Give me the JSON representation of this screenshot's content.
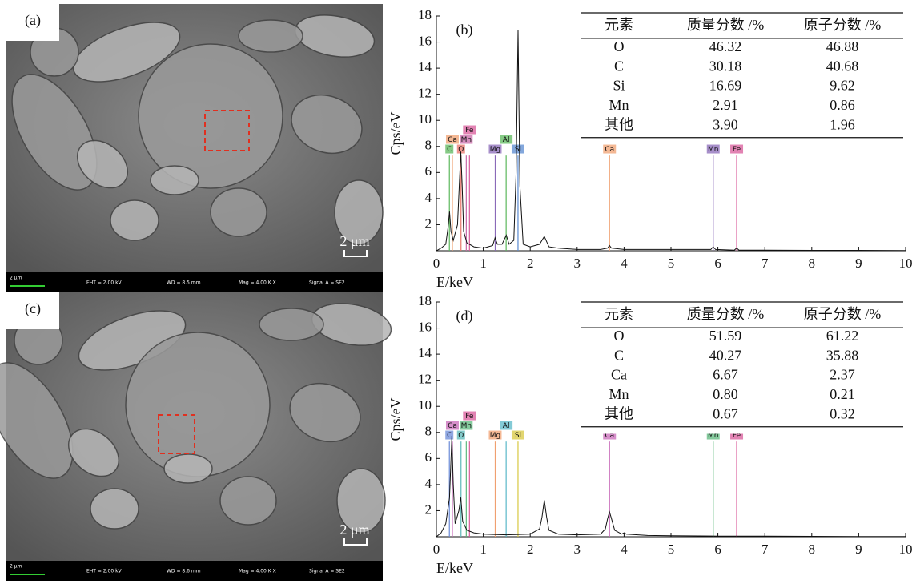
{
  "images": [
    {
      "label": "(a)",
      "scale_bar": "2 μm",
      "info": [
        "2 μm",
        "EHT = 2.00 kV",
        "WD = 8.5 mm",
        "Mag = 4.00 K X",
        "Signal A = SE2"
      ]
    },
    {
      "label": "(c)",
      "scale_bar": "2 μm",
      "info": [
        "2 μm",
        "EHT = 2.00 kV",
        "WD = 8.6 mm",
        "Mag = 4.00 K X",
        "Signal A = SE2"
      ]
    }
  ],
  "chart_data": [
    {
      "type": "line",
      "label": "(b)",
      "x_label": "E/keV",
      "y_label": "Cps/eV",
      "color": "#111111",
      "x": [
        0,
        0.1,
        0.2,
        0.25,
        0.28,
        0.31,
        0.36,
        0.45,
        0.52,
        0.55,
        0.58,
        0.65,
        0.8,
        1.0,
        1.2,
        1.25,
        1.3,
        1.4,
        1.49,
        1.55,
        1.65,
        1.7,
        1.74,
        1.78,
        1.85,
        2.0,
        2.2,
        2.3,
        2.4,
        2.6,
        3.0,
        3.5,
        3.65,
        3.69,
        3.73,
        4.0,
        5.0,
        5.85,
        5.9,
        5.95,
        6.35,
        6.4,
        6.45,
        7,
        8,
        9,
        10
      ],
      "values": [
        0,
        0.2,
        0.5,
        1.8,
        3,
        1.5,
        0.8,
        2,
        7.6,
        5,
        1.5,
        0.6,
        0.3,
        0.2,
        0.4,
        1,
        0.5,
        0.5,
        1.2,
        0.5,
        0.8,
        6,
        16.9,
        5,
        0.5,
        0.3,
        0.5,
        1.1,
        0.3,
        0.2,
        0.1,
        0.1,
        0.2,
        0.4,
        0.2,
        0.1,
        0.1,
        0.1,
        0.3,
        0.1,
        0.05,
        0.2,
        0.05,
        0.05,
        0.03,
        0.03,
        0.02
      ],
      "xlim": [
        0,
        10
      ],
      "ylim": [
        0,
        18
      ],
      "xticks": [
        0,
        1,
        2,
        3,
        4,
        5,
        6,
        7,
        8,
        9,
        10
      ],
      "yticks": [
        2,
        4,
        6,
        8,
        10,
        12,
        14,
        16,
        18
      ],
      "markers": [
        {
          "label": "C",
          "x": 0.277,
          "color": "#5cb85c"
        },
        {
          "label": "O",
          "x": 0.525,
          "color": "#e8736a"
        },
        {
          "label": "Ca",
          "x": 0.341,
          "color": "#f0a070"
        },
        {
          "label": "Mn",
          "x": 0.637,
          "color": "#c86aa8"
        },
        {
          "label": "Fe",
          "x": 0.705,
          "color": "#d85a9a"
        },
        {
          "label": "Mg",
          "x": 1.254,
          "color": "#8a6ab8"
        },
        {
          "label": "Al",
          "x": 1.487,
          "color": "#5cb85c"
        },
        {
          "label": "Si",
          "x": 1.74,
          "color": "#5a8ad0"
        },
        {
          "label": "Ca",
          "x": 3.69,
          "color": "#f0a070"
        },
        {
          "label": "Mn",
          "x": 5.9,
          "color": "#8a6ab8"
        },
        {
          "label": "Fe",
          "x": 6.4,
          "color": "#d85a9a"
        }
      ],
      "table": {
        "header": [
          "元素",
          "质量分数 /%",
          "原子分数 /%"
        ],
        "rows": [
          [
            "O",
            "46.32",
            "46.88"
          ],
          [
            "C",
            "30.18",
            "40.68"
          ],
          [
            "Si",
            "16.69",
            "9.62"
          ],
          [
            "Mn",
            "2.91",
            "0.86"
          ],
          [
            "其他",
            "3.90",
            "1.96"
          ]
        ]
      }
    },
    {
      "type": "line",
      "label": "(d)",
      "x_label": "E/keV",
      "y_label": "Cps/eV",
      "color": "#111111",
      "x": [
        0,
        0.1,
        0.2,
        0.28,
        0.33,
        0.36,
        0.4,
        0.48,
        0.52,
        0.56,
        0.65,
        0.8,
        1.0,
        1.5,
        2.0,
        2.2,
        2.25,
        2.3,
        2.35,
        2.4,
        2.6,
        3.0,
        3.5,
        3.6,
        3.65,
        3.69,
        3.73,
        3.8,
        3.95,
        4.0,
        4.05,
        4.5,
        5,
        6,
        7,
        8,
        9,
        10
      ],
      "values": [
        0,
        0.3,
        1,
        3,
        7.6,
        4,
        1,
        2,
        3,
        1.2,
        0.5,
        0.3,
        0.2,
        0.15,
        0.2,
        0.6,
        1.5,
        2.8,
        1.5,
        0.5,
        0.2,
        0.15,
        0.2,
        0.6,
        1.4,
        1.9,
        1.4,
        0.5,
        0.2,
        0.3,
        0.2,
        0.1,
        0.08,
        0.05,
        0.05,
        0.03,
        0.02,
        0.02
      ],
      "xlim": [
        0,
        10
      ],
      "ylim": [
        0,
        18
      ],
      "xticks": [
        0,
        1,
        2,
        3,
        4,
        5,
        6,
        7,
        8,
        9,
        10
      ],
      "yticks": [
        2,
        4,
        6,
        8,
        10,
        12,
        14,
        16,
        18
      ],
      "markers": [
        {
          "label": "C",
          "x": 0.277,
          "color": "#6a8ad8"
        },
        {
          "label": "O",
          "x": 0.525,
          "color": "#5ab8b8"
        },
        {
          "label": "Ca",
          "x": 0.341,
          "color": "#c86ab8"
        },
        {
          "label": "Mn",
          "x": 0.637,
          "color": "#5cb87c"
        },
        {
          "label": "Fe",
          "x": 0.705,
          "color": "#d85a9a"
        },
        {
          "label": "Mg",
          "x": 1.254,
          "color": "#f0a070"
        },
        {
          "label": "Al",
          "x": 1.487,
          "color": "#5ab8c8"
        },
        {
          "label": "Si",
          "x": 1.74,
          "color": "#d8c840"
        },
        {
          "label": "Ca",
          "x": 3.69,
          "color": "#c86ab8"
        },
        {
          "label": "Mn",
          "x": 5.9,
          "color": "#5cb87c"
        },
        {
          "label": "Fe",
          "x": 6.4,
          "color": "#d85a9a"
        }
      ],
      "table": {
        "header": [
          "元素",
          "质量分数 /%",
          "原子分数 /%"
        ],
        "rows": [
          [
            "O",
            "51.59",
            "61.22"
          ],
          [
            "C",
            "40.27",
            "35.88"
          ],
          [
            "Ca",
            "6.67",
            "2.37"
          ],
          [
            "Mn",
            "0.80",
            "0.21"
          ],
          [
            "其他",
            "0.67",
            "0.32"
          ]
        ]
      }
    }
  ]
}
